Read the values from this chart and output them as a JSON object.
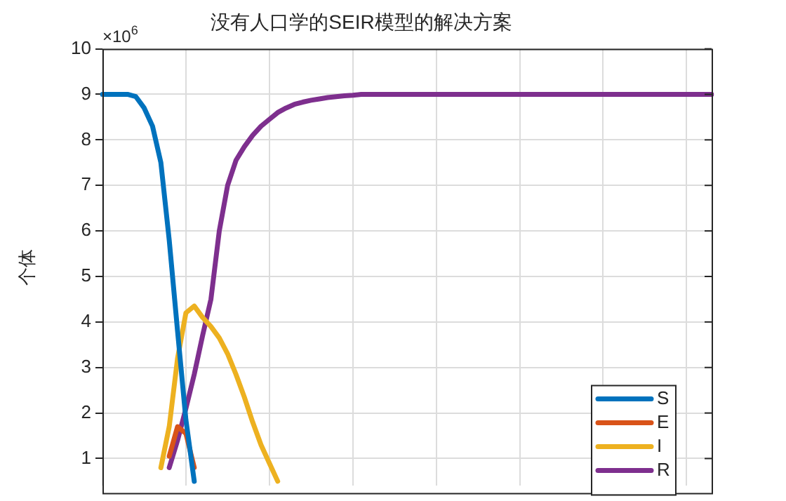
{
  "chart_data": {
    "type": "line",
    "title": "没有人口学的SEIR模型的解决方案",
    "ylabel": "个体",
    "annotations": [
      "×10$^{6}$"
    ],
    "categories": [
      null,
      null,
      null,
      null,
      null,
      null,
      null,
      null,
      null,
      null,
      null,
      null,
      null,
      null,
      null,
      null,
      null,
      null,
      null,
      null,
      null,
      null,
      null,
      null,
      null,
      null,
      null,
      null,
      null,
      null,
      null,
      null,
      null,
      null,
      null,
      null,
      null,
      null,
      null,
      null,
      null,
      null,
      null,
      null,
      null,
      null,
      null,
      null,
      null,
      null,
      null,
      null,
      null,
      null,
      null,
      null,
      null,
      null,
      null,
      null,
      null,
      null,
      null,
      null,
      null,
      null,
      null,
      null,
      null,
      null,
      null,
      null,
      null,
      null
    ],
    "ylim": [
      0.4,
      10
    ],
    "yticks": [
      1,
      2,
      3,
      4,
      5,
      6,
      7,
      8,
      9,
      10
    ],
    "tick_labels": "y",
    "grid": true,
    "legend": "bottom right",
    "marker": "none",
    "line_style": "solid",
    "series": [
      {
        "name": "S",
        "color": "#0072bd",
        "values": [
          9.0,
          9.0,
          9.0,
          9.0,
          8.95,
          8.7,
          8.3,
          7.5,
          5.8,
          3.8,
          1.85,
          0.5,
          null,
          null,
          null,
          null,
          null,
          null,
          null,
          null,
          null,
          null,
          null,
          null,
          null,
          null,
          null,
          null,
          null,
          null,
          null,
          null,
          null,
          null,
          null,
          null,
          null,
          null,
          null,
          null,
          null,
          null,
          null,
          null,
          null,
          null,
          null,
          null,
          null,
          null,
          null,
          null,
          null,
          null,
          null,
          null,
          null,
          null,
          null,
          null,
          null,
          null,
          null,
          null,
          null,
          null,
          null,
          null,
          null,
          null,
          null,
          null,
          null,
          null
        ]
      },
      {
        "name": "E",
        "color": "#d95319",
        "values": [
          null,
          null,
          null,
          null,
          null,
          null,
          null,
          null,
          1.05,
          1.7,
          1.55,
          0.8,
          null,
          null,
          null,
          null,
          null,
          null,
          null,
          null,
          null,
          null,
          null,
          null,
          null,
          null,
          null,
          null,
          null,
          null,
          null,
          null,
          null,
          null,
          null,
          null,
          null,
          null,
          null,
          null,
          null,
          null,
          null,
          null,
          null,
          null,
          null,
          null,
          null,
          null,
          null,
          null,
          null,
          null,
          null,
          null,
          null,
          null,
          null,
          null,
          null,
          null,
          null,
          null,
          null,
          null,
          null,
          null,
          null,
          null,
          null,
          null,
          null,
          null
        ]
      },
      {
        "name": "I",
        "color": "#edb120",
        "values": [
          null,
          null,
          null,
          null,
          null,
          null,
          null,
          0.8,
          1.7,
          3.2,
          4.2,
          4.35,
          4.1,
          3.9,
          3.65,
          3.3,
          2.85,
          2.35,
          1.8,
          1.3,
          0.9,
          0.5,
          null,
          null,
          null,
          null,
          null,
          null,
          null,
          null,
          null,
          null,
          null,
          null,
          null,
          null,
          null,
          null,
          null,
          null,
          null,
          null,
          null,
          null,
          null,
          null,
          null,
          null,
          null,
          null,
          null,
          null,
          null,
          null,
          null,
          null,
          null,
          null,
          null,
          null,
          null,
          null,
          null,
          null,
          null,
          null,
          null,
          null,
          null,
          null,
          null,
          null,
          null,
          null
        ]
      },
      {
        "name": "R",
        "color": "#7e2f8e",
        "values": [
          null,
          null,
          null,
          null,
          null,
          null,
          null,
          null,
          0.8,
          1.4,
          2.1,
          2.85,
          3.7,
          4.5,
          6.0,
          7.0,
          7.55,
          7.85,
          8.1,
          8.3,
          8.45,
          8.6,
          8.7,
          8.78,
          8.83,
          8.87,
          8.9,
          8.93,
          8.95,
          8.97,
          8.98,
          9.0,
          9.0,
          9.0,
          9.0,
          9.0,
          9.0,
          9.0,
          9.0,
          9.0,
          9.0,
          9.0,
          9.0,
          9.0,
          9.0,
          9.0,
          9.0,
          9.0,
          9.0,
          9.0,
          9.0,
          9.0,
          9.0,
          9.0,
          9.0,
          9.0,
          9.0,
          9.0,
          9.0,
          9.0,
          9.0,
          9.0,
          9.0,
          9.0,
          9.0,
          9.0,
          9.0,
          9.0,
          9.0,
          9.0,
          9.0,
          9.0,
          9.0,
          9.0
        ]
      }
    ]
  }
}
